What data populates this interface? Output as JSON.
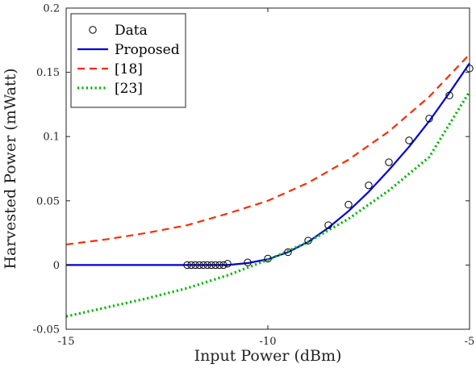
{
  "chart_data": {
    "type": "line",
    "xlabel": "Input Power (dBm)",
    "ylabel": "Harvested Power (mWatt)",
    "xlim": [
      -15,
      -5
    ],
    "ylim": [
      -0.05,
      0.2
    ],
    "xticks": [
      {
        "value": -15,
        "label": "-15"
      },
      {
        "value": -10,
        "label": "-10"
      },
      {
        "value": -5,
        "label": "-5"
      }
    ],
    "yticks": [
      {
        "value": -0.05,
        "label": "-0.05"
      },
      {
        "value": 0,
        "label": "0"
      },
      {
        "value": 0.05,
        "label": "0.05"
      },
      {
        "value": 0.1,
        "label": "0.1"
      },
      {
        "value": 0.15,
        "label": "0.15"
      },
      {
        "value": 0.2,
        "label": "0.2"
      }
    ],
    "grid": false,
    "legend_position": "top-left",
    "series": [
      {
        "name": "Data",
        "style": "markers",
        "marker": "circle",
        "color": "#000000",
        "x": [
          -12.0,
          -11.9,
          -11.8,
          -11.7,
          -11.6,
          -11.5,
          -11.4,
          -11.3,
          -11.2,
          -11.1,
          -11.0,
          -10.5,
          -10.0,
          -9.5,
          -9.0,
          -8.5,
          -8.0,
          -7.5,
          -7.0,
          -6.5,
          -6.0,
          -5.5,
          -5.0
        ],
        "y": [
          0,
          0,
          0,
          0,
          0,
          0,
          0,
          0,
          0,
          0,
          0.001,
          0.002,
          0.005,
          0.01,
          0.019,
          0.031,
          0.047,
          0.062,
          0.08,
          0.097,
          0.114,
          0.132,
          0.153
        ]
      },
      {
        "name": "Proposed",
        "style": "solid",
        "color": "#0000dd",
        "x": [
          -15,
          -11.5,
          -11.0,
          -10.5,
          -10.0,
          -9.5,
          -9.0,
          -8.5,
          -8.0,
          -7.5,
          -7.0,
          -6.5,
          -6.0,
          -5.5,
          -5.0
        ],
        "y": [
          0,
          0,
          0,
          0.0015,
          0.0045,
          0.01,
          0.018,
          0.029,
          0.042,
          0.057,
          0.074,
          0.092,
          0.112,
          0.134,
          0.157
        ]
      },
      {
        "name": "[18]",
        "style": "dashed",
        "color": "#ff2a00",
        "x": [
          -15,
          -14,
          -13,
          -12,
          -11,
          -10,
          -9,
          -8,
          -7,
          -6,
          -5
        ],
        "y": [
          0.016,
          0.02,
          0.025,
          0.031,
          0.04,
          0.05,
          0.064,
          0.082,
          0.104,
          0.131,
          0.164
        ]
      },
      {
        "name": "[23]",
        "style": "dotted",
        "color": "#00bb00",
        "x": [
          -15,
          -14,
          -13,
          -12,
          -11,
          -10,
          -9,
          -8,
          -7,
          -6,
          -5
        ],
        "y": [
          -0.04,
          -0.033,
          -0.026,
          -0.018,
          -0.008,
          0.004,
          0.018,
          0.036,
          0.058,
          0.084,
          0.135
        ]
      }
    ]
  }
}
